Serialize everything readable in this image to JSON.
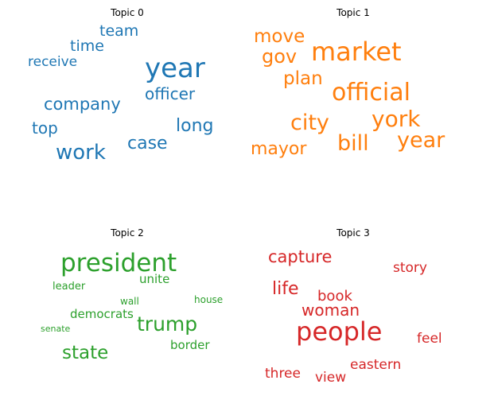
{
  "chart_data": [
    {
      "type": "wordcloud",
      "title": "Topic 0",
      "color": "#1f77b4",
      "words": [
        {
          "text": "year",
          "weight": 34
        },
        {
          "text": "work",
          "weight": 26
        },
        {
          "text": "company",
          "weight": 21
        },
        {
          "text": "long",
          "weight": 22
        },
        {
          "text": "case",
          "weight": 22
        },
        {
          "text": "officer",
          "weight": 20
        },
        {
          "text": "team",
          "weight": 19
        },
        {
          "text": "time",
          "weight": 19
        },
        {
          "text": "top",
          "weight": 20
        },
        {
          "text": "receive",
          "weight": 17
        }
      ]
    },
    {
      "type": "wordcloud",
      "title": "Topic 1",
      "color": "#ff7f0e",
      "words": [
        {
          "text": "market",
          "weight": 32
        },
        {
          "text": "official",
          "weight": 30
        },
        {
          "text": "york",
          "weight": 28
        },
        {
          "text": "city",
          "weight": 27
        },
        {
          "text": "year",
          "weight": 27
        },
        {
          "text": "bill",
          "weight": 27
        },
        {
          "text": "move",
          "weight": 23
        },
        {
          "text": "gov",
          "weight": 24
        },
        {
          "text": "plan",
          "weight": 23
        },
        {
          "text": "mayor",
          "weight": 22
        }
      ]
    },
    {
      "type": "wordcloud",
      "title": "Topic 2",
      "color": "#2ca02c",
      "words": [
        {
          "text": "president",
          "weight": 31
        },
        {
          "text": "trump",
          "weight": 25
        },
        {
          "text": "state",
          "weight": 23
        },
        {
          "text": "democrats",
          "weight": 15
        },
        {
          "text": "unite",
          "weight": 15
        },
        {
          "text": "border",
          "weight": 15
        },
        {
          "text": "leader",
          "weight": 13
        },
        {
          "text": "wall",
          "weight": 12
        },
        {
          "text": "house",
          "weight": 12
        },
        {
          "text": "senate",
          "weight": 11
        }
      ]
    },
    {
      "type": "wordcloud",
      "title": "Topic 3",
      "color": "#d62728",
      "words": [
        {
          "text": "people",
          "weight": 32
        },
        {
          "text": "capture",
          "weight": 21
        },
        {
          "text": "life",
          "weight": 22
        },
        {
          "text": "woman",
          "weight": 20
        },
        {
          "text": "book",
          "weight": 18
        },
        {
          "text": "story",
          "weight": 17
        },
        {
          "text": "three",
          "weight": 17
        },
        {
          "text": "eastern",
          "weight": 17
        },
        {
          "text": "view",
          "weight": 17
        },
        {
          "text": "feel",
          "weight": 17
        }
      ]
    }
  ]
}
